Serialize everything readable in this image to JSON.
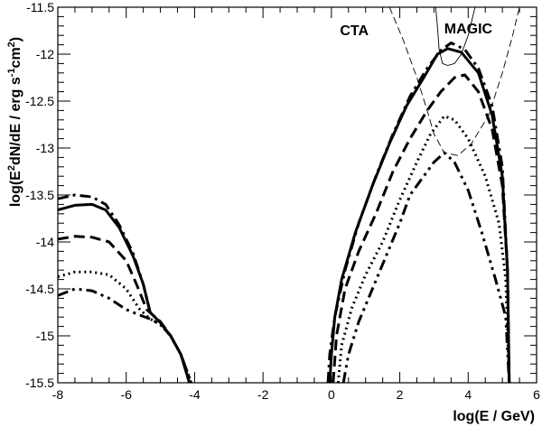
{
  "chart_data": {
    "type": "line",
    "xlabel": "log(E / GeV)",
    "ylabel": "log(E",
    "ylabel_parts": [
      "log(E",
      "2",
      "dN/dE / erg s",
      "-1",
      "cm",
      "2",
      ")"
    ],
    "xlim": [
      -8,
      6
    ],
    "ylim": [
      -15.5,
      -11.5
    ],
    "x_ticks": [
      -8,
      -6,
      -4,
      -2,
      0,
      2,
      4,
      6
    ],
    "y_ticks": [
      -15.5,
      -15,
      -14.5,
      -14,
      -13.5,
      -13,
      -12.5,
      -12,
      -11.5
    ],
    "x_tick_labels": [
      "-8",
      "-6",
      "-4",
      "-2",
      "0",
      "2",
      "4",
      "6"
    ],
    "y_tick_labels": [
      "-15.5",
      "-15",
      "-14.5",
      "-14",
      "-13.5",
      "-13",
      "-12.5",
      "-12",
      "-11.5"
    ],
    "grid": false,
    "legend": "none",
    "annotations": [
      {
        "text": "CTA",
        "x": 0.25,
        "y": -11.8
      },
      {
        "text": "MAGIC",
        "x": 3.3,
        "y": -11.78
      }
    ],
    "series": [
      {
        "style": "solid",
        "segments": [
          [
            [
              -8,
              -13.66
            ],
            [
              -7.5,
              -13.61
            ],
            [
              -7,
              -13.6
            ],
            [
              -6.6,
              -13.66
            ],
            [
              -6.2,
              -13.85
            ],
            [
              -5.8,
              -14.15
            ],
            [
              -5.5,
              -14.45
            ],
            [
              -5.3,
              -14.75
            ],
            [
              -5.0,
              -14.86
            ],
            [
              -4.7,
              -15.0
            ],
            [
              -4.4,
              -15.2
            ],
            [
              -4.15,
              -15.5
            ]
          ],
          [
            [
              -0.05,
              -15.5
            ],
            [
              0.0,
              -15.2
            ],
            [
              0.1,
              -14.8
            ],
            [
              0.3,
              -14.4
            ],
            [
              0.7,
              -13.9
            ],
            [
              1.2,
              -13.4
            ],
            [
              1.7,
              -12.95
            ],
            [
              2.2,
              -12.55
            ],
            [
              2.7,
              -12.25
            ],
            [
              3.1,
              -12.0
            ],
            [
              3.4,
              -11.94
            ],
            [
              3.8,
              -11.98
            ],
            [
              4.3,
              -12.2
            ],
            [
              4.7,
              -12.65
            ],
            [
              5.0,
              -13.3
            ],
            [
              5.15,
              -14.3
            ],
            [
              5.2,
              -15.5
            ]
          ]
        ]
      },
      {
        "style": "dash",
        "segments": [
          [
            [
              -8,
              -13.97
            ],
            [
              -7.5,
              -13.94
            ],
            [
              -7,
              -13.95
            ],
            [
              -6.5,
              -14.0
            ],
            [
              -6.0,
              -14.2
            ],
            [
              -5.7,
              -14.45
            ],
            [
              -5.4,
              -14.72
            ],
            [
              -5.0,
              -14.85
            ],
            [
              -4.7,
              -15.0
            ],
            [
              -4.4,
              -15.2
            ],
            [
              -4.15,
              -15.5
            ]
          ],
          [
            [
              0.05,
              -15.5
            ],
            [
              0.15,
              -15.0
            ],
            [
              0.4,
              -14.5
            ],
            [
              0.8,
              -14.1
            ],
            [
              1.3,
              -13.7
            ],
            [
              1.8,
              -13.25
            ],
            [
              2.3,
              -12.9
            ],
            [
              2.8,
              -12.6
            ],
            [
              3.2,
              -12.4
            ],
            [
              3.6,
              -12.25
            ],
            [
              3.9,
              -12.22
            ],
            [
              4.3,
              -12.4
            ],
            [
              4.7,
              -12.8
            ],
            [
              5.0,
              -13.4
            ],
            [
              5.15,
              -14.3
            ],
            [
              5.2,
              -15.5
            ]
          ]
        ]
      },
      {
        "style": "dot",
        "segments": [
          [
            [
              -8,
              -14.37
            ],
            [
              -7.5,
              -14.32
            ],
            [
              -7,
              -14.32
            ],
            [
              -6.5,
              -14.35
            ],
            [
              -6.0,
              -14.5
            ],
            [
              -5.6,
              -14.72
            ],
            [
              -5.3,
              -14.82
            ],
            [
              -5.0,
              -14.88
            ],
            [
              -4.7,
              -15.0
            ],
            [
              -4.4,
              -15.2
            ],
            [
              -4.15,
              -15.5
            ]
          ],
          [
            [
              0.2,
              -15.5
            ],
            [
              0.3,
              -15.1
            ],
            [
              0.6,
              -14.7
            ],
            [
              1.0,
              -14.35
            ],
            [
              1.5,
              -14.0
            ],
            [
              2.0,
              -13.55
            ],
            [
              2.5,
              -13.15
            ],
            [
              2.9,
              -12.85
            ],
            [
              3.3,
              -12.66
            ],
            [
              3.6,
              -12.7
            ],
            [
              4.0,
              -12.9
            ],
            [
              4.5,
              -13.3
            ],
            [
              4.9,
              -13.8
            ],
            [
              5.1,
              -14.4
            ],
            [
              5.2,
              -15.5
            ]
          ]
        ]
      },
      {
        "style": "dashdot",
        "segments": [
          [
            [
              -8,
              -13.54
            ],
            [
              -7.5,
              -13.5
            ],
            [
              -7,
              -13.52
            ],
            [
              -6.6,
              -13.6
            ],
            [
              -6.2,
              -13.82
            ],
            [
              -5.8,
              -14.12
            ],
            [
              -5.5,
              -14.45
            ],
            [
              -5.3,
              -14.75
            ],
            [
              -5.0,
              -14.86
            ],
            [
              -4.7,
              -15.0
            ],
            [
              -4.4,
              -15.2
            ],
            [
              -4.1,
              -15.5
            ]
          ],
          [
            [
              -0.1,
              -15.5
            ],
            [
              -0.05,
              -15.2
            ],
            [
              0.1,
              -14.8
            ],
            [
              0.4,
              -14.3
            ],
            [
              0.8,
              -13.8
            ],
            [
              1.3,
              -13.3
            ],
            [
              1.8,
              -12.85
            ],
            [
              2.3,
              -12.45
            ],
            [
              2.8,
              -12.15
            ],
            [
              3.2,
              -11.96
            ],
            [
              3.5,
              -11.88
            ],
            [
              3.9,
              -11.95
            ],
            [
              4.3,
              -12.15
            ],
            [
              4.7,
              -12.55
            ],
            [
              5.0,
              -13.2
            ],
            [
              5.15,
              -14.3
            ],
            [
              5.2,
              -15.5
            ]
          ]
        ]
      },
      {
        "style": "dashdotdot",
        "segments": [
          [
            [
              -8,
              -14.57
            ],
            [
              -7.5,
              -14.5
            ],
            [
              -7,
              -14.52
            ],
            [
              -6.5,
              -14.6
            ],
            [
              -6.0,
              -14.72
            ],
            [
              -5.6,
              -14.78
            ],
            [
              -5.3,
              -14.82
            ],
            [
              -5.0,
              -14.88
            ],
            [
              -4.7,
              -15.0
            ],
            [
              -4.4,
              -15.2
            ],
            [
              -4.1,
              -15.5
            ]
          ],
          [
            [
              0.35,
              -15.5
            ],
            [
              0.5,
              -15.2
            ],
            [
              0.8,
              -14.85
            ],
            [
              1.2,
              -14.5
            ],
            [
              1.6,
              -14.15
            ],
            [
              2.0,
              -13.8
            ],
            [
              2.3,
              -13.5
            ],
            [
              2.6,
              -13.35
            ],
            [
              3.0,
              -13.15
            ],
            [
              3.3,
              -13.05
            ],
            [
              3.6,
              -13.15
            ],
            [
              4.0,
              -13.45
            ],
            [
              4.4,
              -13.9
            ],
            [
              4.8,
              -14.4
            ],
            [
              5.1,
              -14.8
            ],
            [
              5.2,
              -15.5
            ]
          ]
        ]
      },
      {
        "style": "thin-dash",
        "segments": [
          [
            [
              1.7,
              -11.5
            ],
            [
              2.1,
              -11.85
            ],
            [
              2.5,
              -12.25
            ],
            [
              2.8,
              -12.6
            ],
            [
              3.0,
              -12.85
            ],
            [
              3.3,
              -13.05
            ],
            [
              3.7,
              -13.08
            ],
            [
              4.1,
              -12.95
            ],
            [
              4.6,
              -12.65
            ],
            [
              5.0,
              -12.2
            ],
            [
              5.3,
              -11.8
            ],
            [
              5.5,
              -11.5
            ]
          ]
        ]
      },
      {
        "style": "thin-solid",
        "segments": [
          [
            [
              3.05,
              -11.5
            ],
            [
              3.1,
              -11.7
            ],
            [
              3.15,
              -11.95
            ],
            [
              3.25,
              -12.1
            ],
            [
              3.4,
              -12.12
            ],
            [
              3.6,
              -12.1
            ],
            [
              3.8,
              -12.0
            ],
            [
              4.0,
              -11.8
            ],
            [
              4.2,
              -11.5
            ]
          ]
        ]
      }
    ]
  }
}
